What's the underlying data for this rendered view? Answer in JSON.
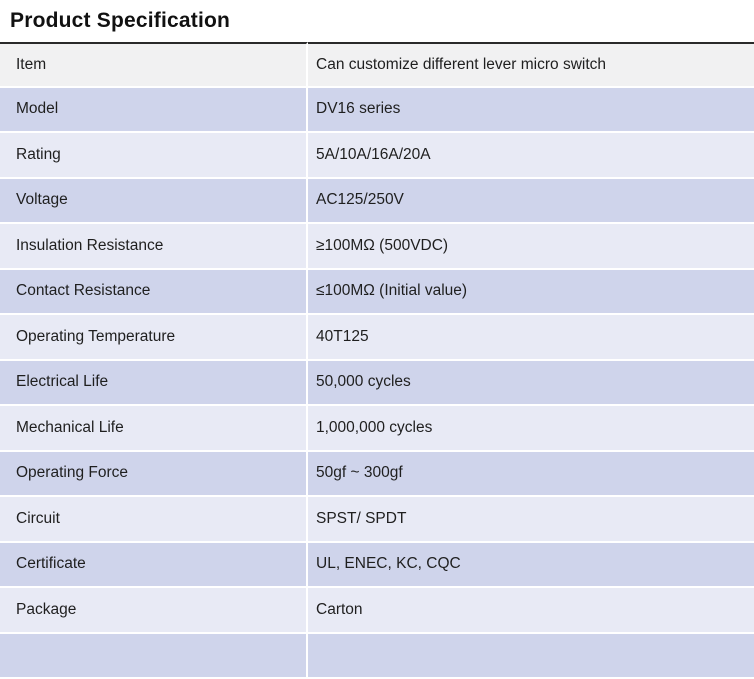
{
  "title": "Product Specification",
  "table": {
    "rows": [
      {
        "label": "Item",
        "value": "Can customize different lever micro switch"
      },
      {
        "label": "Model",
        "value": "DV16 series"
      },
      {
        "label": "Rating",
        "value": "5A/10A/16A/20A"
      },
      {
        "label": "Voltage",
        "value": "AC125/250V"
      },
      {
        "label": "Insulation Resistance",
        "value": "≥100MΩ (500VDC)"
      },
      {
        "label": "Contact Resistance",
        "value": "≤100MΩ (Initial value)"
      },
      {
        "label": "Operating Temperature",
        "value": "40T125"
      },
      {
        "label": "Electrical Life",
        "value": "50,000 cycles"
      },
      {
        "label": "Mechanical Life",
        "value": "1,000,000 cycles"
      },
      {
        "label": "Operating Force",
        "value": "50gf ~ 300gf"
      },
      {
        "label": "Circuit",
        "value": "SPST/ SPDT"
      },
      {
        "label": "Certificate",
        "value": "UL, ENEC, KC, CQC"
      },
      {
        "label": "Package",
        "value": "Carton"
      }
    ]
  },
  "colors": {
    "title_text": "#111111",
    "text": "#1f1f1f",
    "row_header": "#f1f1f2",
    "row_medium": "#cfd4eb",
    "row_light": "#e8eaf5",
    "separator": "#ffffff",
    "table_top_border": "#2a2a2a"
  }
}
